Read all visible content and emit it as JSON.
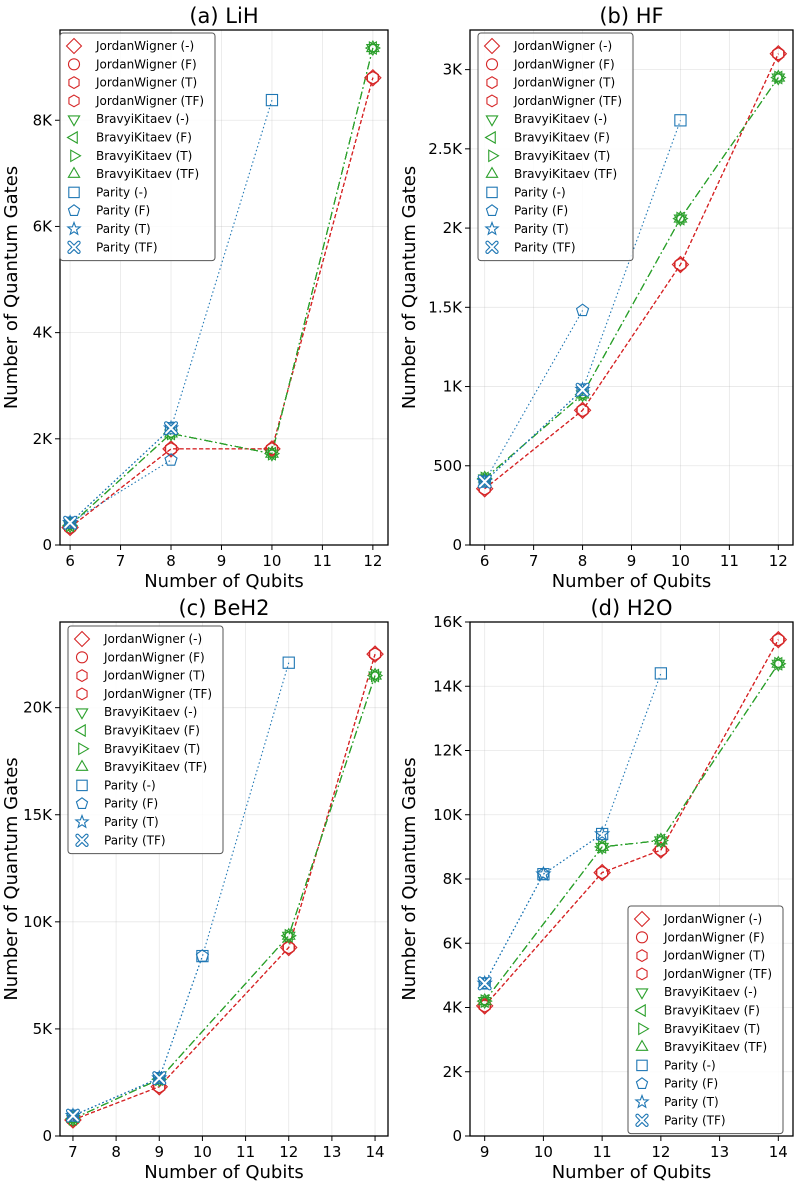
{
  "chart_data": [
    {
      "type": "line",
      "title": "(a) LiH",
      "xlabel": "Number of Qubits",
      "ylabel": "Number of Quantum Gates",
      "xlim": [
        5.8,
        12.3
      ],
      "ylim": [
        0,
        9700
      ],
      "xticks": [
        6,
        7,
        8,
        9,
        10,
        11,
        12
      ],
      "xtick_labels": [
        "6",
        "7",
        "8",
        "9",
        "10",
        "11",
        "12"
      ],
      "yticks": [
        0,
        2000,
        4000,
        6000,
        8000
      ],
      "ytick_labels": [
        "0",
        "2K",
        "4K",
        "6K",
        "8K"
      ],
      "legend_position": "upper-left",
      "x": [
        6,
        8,
        10,
        12
      ],
      "series": [
        {
          "name": "JordanWigner (-)",
          "marker": "diamond",
          "color": "#d62728",
          "values": [
            330,
            1810,
            1810,
            8800
          ]
        },
        {
          "name": "JordanWigner (F)",
          "marker": "circle",
          "color": "#d62728",
          "values": [
            330,
            1810,
            1810,
            8800
          ]
        },
        {
          "name": "JordanWigner (T)",
          "marker": "hexagon",
          "color": "#d62728",
          "values": [
            330,
            1810,
            1810,
            8800
          ]
        },
        {
          "name": "JordanWigner (TF)",
          "marker": "hexagon",
          "color": "#d62728",
          "values": [
            330,
            1810,
            1810,
            8800
          ]
        },
        {
          "name": "BravyiKitaev (-)",
          "marker": "triangle_down",
          "color": "#2ca02c",
          "values": [
            370,
            2100,
            1720,
            9360
          ]
        },
        {
          "name": "BravyiKitaev (F)",
          "marker": "triangle_left",
          "color": "#2ca02c",
          "values": [
            370,
            2100,
            1720,
            9360
          ]
        },
        {
          "name": "BravyiKitaev (T)",
          "marker": "triangle_right",
          "color": "#2ca02c",
          "values": [
            370,
            2100,
            1720,
            9360
          ]
        },
        {
          "name": "BravyiKitaev (TF)",
          "marker": "triangle_up",
          "color": "#2ca02c",
          "values": [
            370,
            2100,
            1720,
            9360
          ]
        },
        {
          "name": "Parity (-)",
          "marker": "square",
          "color": "#1f77b4",
          "values": [
            420,
            2200,
            8380,
            null
          ]
        },
        {
          "name": "Parity (F)",
          "marker": "pentagon",
          "color": "#1f77b4",
          "values": [
            420,
            1600,
            null,
            null
          ]
        },
        {
          "name": "Parity (T)",
          "marker": "star",
          "color": "#1f77b4",
          "values": [
            420,
            2200,
            null,
            null
          ]
        },
        {
          "name": "Parity (TF)",
          "marker": "x_filled",
          "color": "#1f77b4",
          "values": [
            420,
            2200,
            null,
            null
          ]
        }
      ]
    },
    {
      "type": "line",
      "title": "(b) HF",
      "xlabel": "Number of Qubits",
      "ylabel": "Number of Quantum Gates",
      "xlim": [
        5.7,
        12.3
      ],
      "ylim": [
        0,
        3250
      ],
      "xticks": [
        6,
        7,
        8,
        9,
        10,
        11,
        12
      ],
      "xtick_labels": [
        "6",
        "7",
        "8",
        "9",
        "10",
        "11",
        "12"
      ],
      "yticks": [
        0,
        500,
        1000,
        1500,
        2000,
        2500,
        3000
      ],
      "ytick_labels": [
        "0",
        "500",
        "1K",
        "1.5K",
        "2K",
        "2.5K",
        "3K"
      ],
      "legend_position": "upper-left",
      "x": [
        6,
        8,
        10,
        12
      ],
      "series": [
        {
          "name": "JordanWigner (-)",
          "marker": "diamond",
          "color": "#d62728",
          "values": [
            355,
            850,
            1770,
            3100
          ]
        },
        {
          "name": "JordanWigner (F)",
          "marker": "circle",
          "color": "#d62728",
          "values": [
            355,
            850,
            1770,
            3100
          ]
        },
        {
          "name": "JordanWigner (T)",
          "marker": "hexagon",
          "color": "#d62728",
          "values": [
            355,
            850,
            1770,
            3100
          ]
        },
        {
          "name": "JordanWigner (TF)",
          "marker": "hexagon",
          "color": "#d62728",
          "values": [
            355,
            850,
            1770,
            3100
          ]
        },
        {
          "name": "BravyiKitaev (-)",
          "marker": "triangle_down",
          "color": "#2ca02c",
          "values": [
            420,
            950,
            2060,
            2950
          ]
        },
        {
          "name": "BravyiKitaev (F)",
          "marker": "triangle_left",
          "color": "#2ca02c",
          "values": [
            420,
            950,
            2060,
            2950
          ]
        },
        {
          "name": "BravyiKitaev (T)",
          "marker": "triangle_right",
          "color": "#2ca02c",
          "values": [
            420,
            950,
            2060,
            2950
          ]
        },
        {
          "name": "BravyiKitaev (TF)",
          "marker": "triangle_up",
          "color": "#2ca02c",
          "values": [
            420,
            950,
            2060,
            2950
          ]
        },
        {
          "name": "Parity (-)",
          "marker": "square",
          "color": "#1f77b4",
          "values": [
            400,
            980,
            2680,
            null
          ]
        },
        {
          "name": "Parity (F)",
          "marker": "pentagon",
          "color": "#1f77b4",
          "values": [
            400,
            1480,
            null,
            null
          ]
        },
        {
          "name": "Parity (T)",
          "marker": "star",
          "color": "#1f77b4",
          "values": [
            400,
            980,
            null,
            null
          ]
        },
        {
          "name": "Parity (TF)",
          "marker": "x_filled",
          "color": "#1f77b4",
          "values": [
            400,
            980,
            null,
            null
          ]
        }
      ]
    },
    {
      "type": "line",
      "title": "(c) BeH2",
      "xlabel": "Number of Qubits",
      "ylabel": "Number of Quantum Gates",
      "xlim": [
        6.7,
        14.3
      ],
      "ylim": [
        0,
        24000
      ],
      "xticks": [
        7,
        8,
        9,
        10,
        11,
        12,
        13,
        14
      ],
      "xtick_labels": [
        "7",
        "8",
        "9",
        "10",
        "11",
        "12",
        "13",
        "14"
      ],
      "yticks": [
        0,
        5000,
        10000,
        15000,
        20000
      ],
      "ytick_labels": [
        "0",
        "5K",
        "10K",
        "15K",
        "20K"
      ],
      "legend_position": "upper-left",
      "x": [
        7,
        9,
        10,
        12,
        14
      ],
      "series": [
        {
          "name": "JordanWigner (-)",
          "marker": "diamond",
          "color": "#d62728",
          "values": [
            750,
            2300,
            null,
            8800,
            22500
          ]
        },
        {
          "name": "JordanWigner (F)",
          "marker": "circle",
          "color": "#d62728",
          "values": [
            750,
            2300,
            null,
            8800,
            22500
          ]
        },
        {
          "name": "JordanWigner (T)",
          "marker": "hexagon",
          "color": "#d62728",
          "values": [
            750,
            2300,
            null,
            8800,
            22500
          ]
        },
        {
          "name": "JordanWigner (TF)",
          "marker": "hexagon",
          "color": "#d62728",
          "values": [
            750,
            2300,
            null,
            8800,
            22500
          ]
        },
        {
          "name": "BravyiKitaev (-)",
          "marker": "triangle_down",
          "color": "#2ca02c",
          "values": [
            800,
            2650,
            null,
            9350,
            21500
          ]
        },
        {
          "name": "BravyiKitaev (F)",
          "marker": "triangle_left",
          "color": "#2ca02c",
          "values": [
            800,
            2650,
            null,
            9350,
            21500
          ]
        },
        {
          "name": "BravyiKitaev (T)",
          "marker": "triangle_right",
          "color": "#2ca02c",
          "values": [
            800,
            2650,
            null,
            9350,
            21500
          ]
        },
        {
          "name": "BravyiKitaev (TF)",
          "marker": "triangle_up",
          "color": "#2ca02c",
          "values": [
            800,
            2650,
            null,
            9350,
            21500
          ]
        },
        {
          "name": "Parity (-)",
          "marker": "square",
          "color": "#1f77b4",
          "values": [
            950,
            2700,
            8400,
            22100,
            null
          ]
        },
        {
          "name": "Parity (F)",
          "marker": "pentagon",
          "color": "#1f77b4",
          "values": [
            950,
            2700,
            8400,
            null,
            null
          ]
        },
        {
          "name": "Parity (T)",
          "marker": "star",
          "color": "#1f77b4",
          "values": [
            950,
            2700,
            null,
            null,
            null
          ]
        },
        {
          "name": "Parity (TF)",
          "marker": "x_filled",
          "color": "#1f77b4",
          "values": [
            950,
            2700,
            null,
            null,
            null
          ]
        }
      ]
    },
    {
      "type": "line",
      "title": "(d) H2O",
      "xlabel": "Number of Qubits",
      "ylabel": "Number of Quantum Gates",
      "xlim": [
        8.75,
        14.25
      ],
      "ylim": [
        0,
        16000
      ],
      "xticks": [
        9,
        10,
        11,
        12,
        13,
        14
      ],
      "xtick_labels": [
        "9",
        "10",
        "11",
        "12",
        "13",
        "14"
      ],
      "yticks": [
        0,
        2000,
        4000,
        6000,
        8000,
        10000,
        12000,
        14000,
        16000
      ],
      "ytick_labels": [
        "0",
        "2K",
        "4K",
        "6K",
        "8K",
        "10K",
        "12K",
        "14K",
        "16K"
      ],
      "legend_position": "lower-right",
      "x": [
        9,
        10,
        11,
        12,
        14
      ],
      "series": [
        {
          "name": "JordanWigner (-)",
          "marker": "diamond",
          "color": "#d62728",
          "values": [
            4050,
            null,
            8200,
            8900,
            15450
          ]
        },
        {
          "name": "JordanWigner (F)",
          "marker": "circle",
          "color": "#d62728",
          "values": [
            4050,
            null,
            8200,
            8900,
            15450
          ]
        },
        {
          "name": "JordanWigner (T)",
          "marker": "hexagon",
          "color": "#d62728",
          "values": [
            4050,
            null,
            8200,
            8900,
            15450
          ]
        },
        {
          "name": "JordanWigner (TF)",
          "marker": "hexagon",
          "color": "#d62728",
          "values": [
            4050,
            null,
            8200,
            8900,
            15450
          ]
        },
        {
          "name": "BravyiKitaev (-)",
          "marker": "triangle_down",
          "color": "#2ca02c",
          "values": [
            4200,
            null,
            9000,
            9200,
            14700
          ]
        },
        {
          "name": "BravyiKitaev (F)",
          "marker": "triangle_left",
          "color": "#2ca02c",
          "values": [
            4200,
            null,
            9000,
            9200,
            14700
          ]
        },
        {
          "name": "BravyiKitaev (T)",
          "marker": "triangle_right",
          "color": "#2ca02c",
          "values": [
            4200,
            null,
            9000,
            9200,
            14700
          ]
        },
        {
          "name": "BravyiKitaev (TF)",
          "marker": "triangle_up",
          "color": "#2ca02c",
          "values": [
            4200,
            null,
            9000,
            9200,
            14700
          ]
        },
        {
          "name": "Parity (-)",
          "marker": "square",
          "color": "#1f77b4",
          "values": [
            4750,
            8150,
            9400,
            14400,
            null
          ]
        },
        {
          "name": "Parity (F)",
          "marker": "pentagon",
          "color": "#1f77b4",
          "values": [
            4750,
            8150,
            null,
            null,
            null
          ]
        },
        {
          "name": "Parity (T)",
          "marker": "star",
          "color": "#1f77b4",
          "values": [
            4750,
            8150,
            9400,
            null,
            null
          ]
        },
        {
          "name": "Parity (TF)",
          "marker": "x_filled",
          "color": "#1f77b4",
          "values": [
            4750,
            null,
            null,
            null,
            null
          ]
        }
      ]
    }
  ]
}
